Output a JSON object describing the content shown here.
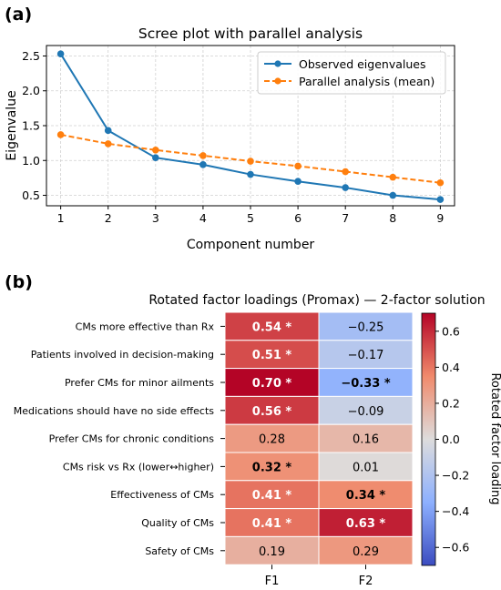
{
  "chart_data": [
    {
      "panel_label": "(a)",
      "type": "line",
      "title": "Scree plot with parallel analysis",
      "xlabel": "Component number",
      "ylabel": "Eigenvalue",
      "x": [
        1,
        2,
        3,
        4,
        5,
        6,
        7,
        8,
        9
      ],
      "xlim": [
        0.7,
        9.3
      ],
      "ylim": [
        0.35,
        2.65
      ],
      "xticks": [
        1,
        2,
        3,
        4,
        5,
        6,
        7,
        8,
        9
      ],
      "yticks": [
        0.5,
        1.0,
        1.5,
        2.0,
        2.5
      ],
      "grid": true,
      "legend_position": "top-right",
      "series": [
        {
          "name": "Observed eigenvalues",
          "values": [
            2.53,
            1.43,
            1.04,
            0.94,
            0.8,
            0.7,
            0.61,
            0.5,
            0.44
          ],
          "color": "#1f77b4",
          "style": "solid"
        },
        {
          "name": "Parallel analysis (mean)",
          "values": [
            1.37,
            1.24,
            1.15,
            1.07,
            0.99,
            0.92,
            0.84,
            0.76,
            0.68
          ],
          "color": "#ff7f0e",
          "style": "dashed"
        }
      ]
    },
    {
      "panel_label": "(b)",
      "type": "heatmap",
      "title": "Rotated factor loadings (Promax) — 2-factor solution",
      "rows": [
        "CMs more effective than Rx",
        "Patients involved in decision-making",
        "Prefer CMs for minor ailments",
        "Medications should have no side effects",
        "Prefer CMs for chronic conditions",
        "CMs risk vs Rx (lower↔higher)",
        "Effectiveness of CMs",
        "Quality of CMs",
        "Safety of CMs"
      ],
      "columns": [
        "F1",
        "F2"
      ],
      "values": [
        [
          0.54,
          -0.25
        ],
        [
          0.51,
          -0.17
        ],
        [
          0.7,
          -0.33
        ],
        [
          0.56,
          -0.09
        ],
        [
          0.28,
          0.16
        ],
        [
          0.32,
          0.01
        ],
        [
          0.41,
          0.34
        ],
        [
          0.41,
          0.63
        ],
        [
          0.19,
          0.29
        ]
      ],
      "cell_labels": [
        [
          "0.54 *",
          "−0.25"
        ],
        [
          "0.51 *",
          "−0.17"
        ],
        [
          "0.70 *",
          "−0.33 *"
        ],
        [
          "0.56 *",
          "−0.09"
        ],
        [
          "0.28",
          "0.16"
        ],
        [
          "0.32 *",
          "0.01"
        ],
        [
          "0.41 *",
          "0.34 *"
        ],
        [
          "0.41 *",
          "0.63 *"
        ],
        [
          "0.19",
          "0.29"
        ]
      ],
      "significant": [
        [
          true,
          false
        ],
        [
          true,
          false
        ],
        [
          true,
          true
        ],
        [
          true,
          false
        ],
        [
          false,
          false
        ],
        [
          true,
          false
        ],
        [
          true,
          true
        ],
        [
          true,
          true
        ],
        [
          false,
          false
        ]
      ],
      "colorbar": {
        "label": "Rotated factor loading",
        "vmin": -0.7,
        "vmax": 0.7,
        "ticks": [
          0.6,
          0.4,
          0.2,
          0.0,
          -0.2,
          -0.4,
          -0.6
        ],
        "tick_labels": [
          "0.6",
          "0.4",
          "0.2",
          "0.0",
          "−0.2",
          "−0.4",
          "−0.6"
        ],
        "colormap": "coolwarm"
      }
    }
  ]
}
